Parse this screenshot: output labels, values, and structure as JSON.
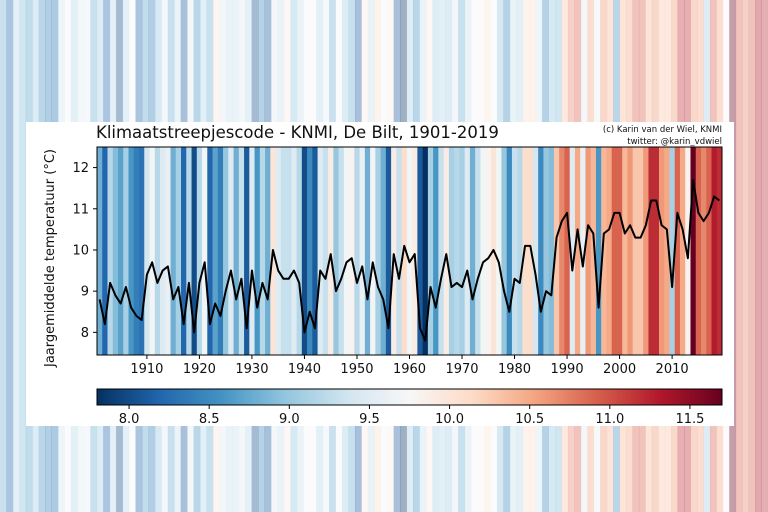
{
  "colors": {
    "scale": [
      "#67001f",
      "#b2182b",
      "#d6604d",
      "#f4a582",
      "#fddbc7",
      "#f7f7f7",
      "#d1e5f0",
      "#92c5de",
      "#4393c3",
      "#2166ac",
      "#053061"
    ],
    "line": "#000000",
    "background": "#ffffff"
  },
  "chart_data": {
    "type": "line",
    "title": "Klimaatstreepjescode - KNMI, De Bilt, 1901-2019",
    "credit_line1": "(c) Karin van der Wiel, KNMI",
    "credit_line2": "twitter: @karin_vdwiel",
    "ylabel": "Jaargemiddelde temperatuur (°C)",
    "xlabel": "",
    "xlim": [
      1901,
      2019
    ],
    "ylim": [
      7.45,
      12.5
    ],
    "x_ticks": [
      "1910",
      "1920",
      "1930",
      "1940",
      "1950",
      "1960",
      "1970",
      "1980",
      "1990",
      "2000",
      "2010"
    ],
    "y_ticks": [
      "8",
      "9",
      "10",
      "11",
      "12"
    ],
    "colorbar": {
      "range": [
        7.8,
        11.7
      ],
      "tick_labels": [
        "8.0",
        "8.5",
        "9.0",
        "9.5",
        "10.0",
        "10.5",
        "11.0",
        "11.5"
      ]
    },
    "grid": false,
    "series": [
      {
        "x": [
          1901,
          1902,
          1903,
          1904,
          1905,
          1906,
          1907,
          1908,
          1909,
          1910,
          1911,
          1912,
          1913,
          1914,
          1915,
          1916,
          1917,
          1918,
          1919,
          1920,
          1921,
          1922,
          1923,
          1924,
          1925,
          1926,
          1927,
          1928,
          1929,
          1930,
          1931,
          1932,
          1933,
          1934,
          1935,
          1936,
          1937,
          1938,
          1939,
          1940,
          1941,
          1942,
          1943,
          1944,
          1945,
          1946,
          1947,
          1948,
          1949,
          1950,
          1951,
          1952,
          1953,
          1954,
          1955,
          1956,
          1957,
          1958,
          1959,
          1960,
          1961,
          1962,
          1963,
          1964,
          1965,
          1966,
          1967,
          1968,
          1969,
          1970,
          1971,
          1972,
          1973,
          1974,
          1975,
          1976,
          1977,
          1978,
          1979,
          1980,
          1981,
          1982,
          1983,
          1984,
          1985,
          1986,
          1987,
          1988,
          1989,
          1990,
          1991,
          1992,
          1993,
          1994,
          1995,
          1996,
          1997,
          1998,
          1999,
          2000,
          2001,
          2002,
          2003,
          2004,
          2005,
          2006,
          2007,
          2008,
          2009,
          2010,
          2011,
          2012,
          2013,
          2014,
          2015,
          2016,
          2017,
          2018,
          2019
        ],
        "values": [
          8.8,
          8.2,
          9.2,
          8.9,
          8.7,
          9.1,
          8.6,
          8.4,
          8.3,
          9.4,
          9.7,
          9.2,
          9.5,
          9.6,
          8.8,
          9.1,
          8.2,
          9.2,
          8.0,
          9.2,
          9.7,
          8.2,
          8.7,
          8.4,
          9.0,
          9.5,
          8.8,
          9.3,
          8.1,
          9.5,
          8.6,
          9.2,
          8.8,
          10.0,
          9.5,
          9.3,
          9.3,
          9.5,
          9.2,
          8.0,
          8.5,
          8.1,
          9.5,
          9.3,
          9.9,
          9.0,
          9.3,
          9.7,
          9.8,
          9.2,
          9.6,
          8.8,
          9.7,
          9.1,
          8.8,
          8.1,
          9.9,
          9.3,
          10.1,
          9.7,
          9.9,
          8.1,
          7.8,
          9.1,
          8.6,
          9.3,
          9.9,
          9.1,
          9.2,
          9.1,
          9.5,
          8.8,
          9.3,
          9.7,
          9.8,
          10.0,
          9.7,
          9.0,
          8.5,
          9.3,
          9.2,
          10.1,
          10.1,
          9.4,
          8.5,
          9.0,
          8.9,
          10.3,
          10.7,
          10.9,
          9.5,
          10.5,
          9.6,
          10.6,
          10.4,
          8.6,
          10.4,
          10.5,
          10.9,
          10.9,
          10.4,
          10.6,
          10.3,
          10.3,
          10.6,
          11.2,
          11.2,
          10.6,
          10.5,
          9.1,
          10.9,
          10.5,
          9.8,
          11.7,
          10.9,
          10.7,
          10.9,
          11.3,
          11.2
        ]
      }
    ]
  }
}
